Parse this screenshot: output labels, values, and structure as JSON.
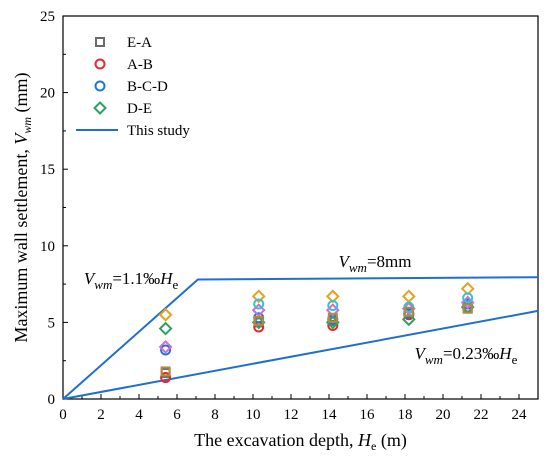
{
  "chart_data": {
    "type": "scatter",
    "xlabel": "The excavation depth, H_e (m)",
    "ylabel": "Maximum wall settlement, V_wm (mm)",
    "xlim": [
      0,
      25
    ],
    "ylim": [
      0,
      25
    ],
    "x_ticks": [
      "0",
      "2",
      "4",
      "6",
      "8",
      "10",
      "12",
      "14",
      "16",
      "18",
      "20",
      "22",
      "24"
    ],
    "y_ticks": [
      "0",
      "5",
      "10",
      "15",
      "20",
      "25"
    ],
    "grid": false,
    "legend_position": "top-left",
    "series": [
      {
        "name": "E-A",
        "marker": "square",
        "color": "#6b6b6b",
        "points": [
          [
            5.4,
            1.7
          ],
          [
            10.3,
            5.0
          ],
          [
            14.2,
            5.1
          ],
          [
            18.2,
            5.6
          ],
          [
            21.3,
            5.9
          ]
        ]
      },
      {
        "name": "A-B",
        "marker": "circle",
        "color": "#e8262b",
        "points": [
          [
            5.4,
            1.4
          ],
          [
            10.3,
            4.7
          ],
          [
            14.2,
            4.8
          ],
          [
            18.2,
            5.5
          ],
          [
            21.3,
            6.0
          ]
        ]
      },
      {
        "name": "B-C-D",
        "marker": "circle",
        "color": "#1f77d2",
        "points": [
          [
            5.4,
            3.2
          ],
          [
            10.3,
            5.3
          ],
          [
            14.2,
            5.2
          ],
          [
            18.2,
            5.6
          ],
          [
            21.3,
            6.2
          ]
        ]
      },
      {
        "name": "D-E",
        "marker": "diamond",
        "color": "#2ca25f",
        "points": [
          [
            5.4,
            4.6
          ],
          [
            10.3,
            5.0
          ],
          [
            14.2,
            5.0
          ],
          [
            18.2,
            5.2
          ],
          [
            21.3,
            6.0
          ]
        ]
      },
      {
        "name": "",
        "marker": "diamond",
        "color": "#e8a020",
        "points": [
          [
            5.4,
            5.5
          ],
          [
            10.3,
            6.7
          ],
          [
            14.2,
            6.7
          ],
          [
            18.2,
            6.7
          ],
          [
            21.3,
            7.2
          ]
        ]
      },
      {
        "name": "",
        "marker": "diamond",
        "color": "#d66bd6",
        "points": [
          [
            5.4,
            3.4
          ],
          [
            10.3,
            5.8
          ],
          [
            14.2,
            5.8
          ],
          [
            18.2,
            5.9
          ],
          [
            21.3,
            6.3
          ]
        ]
      },
      {
        "name": "",
        "marker": "circle",
        "color": "#36c2d6",
        "points": [
          [
            10.3,
            6.2
          ],
          [
            14.2,
            6.1
          ],
          [
            18.2,
            6.0
          ],
          [
            21.3,
            6.6
          ]
        ]
      },
      {
        "name": "",
        "marker": "square",
        "color": "#b38b3a",
        "points": [
          [
            5.4,
            1.8
          ],
          [
            10.3,
            5.1
          ],
          [
            14.2,
            5.3
          ],
          [
            18.2,
            5.7
          ],
          [
            21.3,
            5.9
          ]
        ]
      }
    ],
    "lines": [
      {
        "name": "This study",
        "color": "#1f6fd1",
        "points": [
          [
            0,
            0
          ],
          [
            7.1,
            7.8
          ],
          [
            25,
            7.95
          ]
        ]
      },
      {
        "name": "",
        "color": "#1f6fd1",
        "points": [
          [
            0,
            0
          ],
          [
            25,
            5.75
          ]
        ]
      }
    ],
    "annotations": [
      {
        "main": "V",
        "sub": "wm",
        "rest": "=1.1‰",
        "italic2": "H",
        "sub2": "e",
        "at": [
          1.1,
          7.5
        ]
      },
      {
        "main": "V",
        "sub": "wm",
        "rest": "=8mm",
        "italic2": "",
        "sub2": "",
        "at": [
          14.5,
          8.6
        ]
      },
      {
        "main": "V",
        "sub": "wm",
        "rest": "=0.23‰",
        "italic2": "H",
        "sub2": "e",
        "at": [
          18.5,
          2.6
        ]
      }
    ]
  }
}
